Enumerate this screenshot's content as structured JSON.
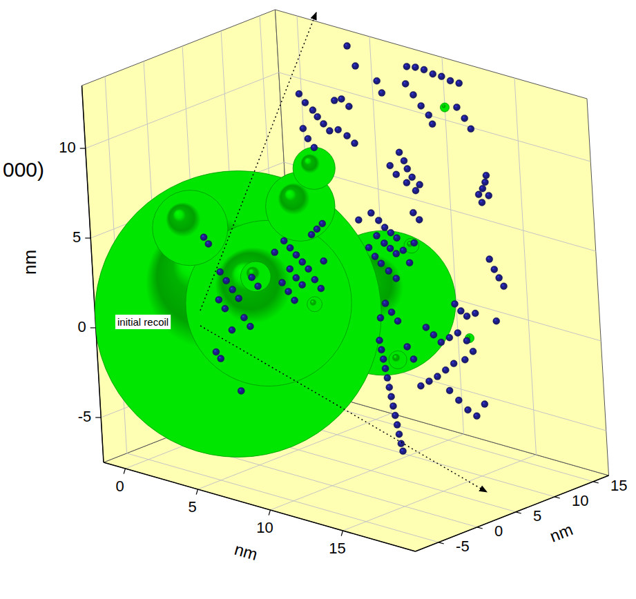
{
  "chart_data": {
    "type": "scatter3d",
    "title": "000)",
    "x_label": "nm",
    "y_label": "nm",
    "z_label": "nm",
    "annotation": "initial recoil",
    "xlim": [
      -1.5,
      20
    ],
    "ylim": [
      -8,
      17
    ],
    "zlim": [
      -7.5,
      13.5
    ],
    "xticks": [
      0,
      5,
      10,
      15
    ],
    "yticks": [
      -5,
      0,
      5,
      10,
      15
    ],
    "zticks": [
      -5,
      0,
      5,
      10
    ],
    "grid": true,
    "series": [
      {
        "type": "sphere",
        "color": "#00e600",
        "x": [
          11.0,
          5.2,
          8.5,
          3.3,
          10.0,
          8.9,
          7.7,
          9.5,
          13.2,
          14.0,
          16.9,
          11.1
        ],
        "y": [
          6,
          -2,
          -4,
          -4,
          -2,
          2,
          -4,
          0,
          6,
          2,
          6,
          15
        ],
        "z": [
          1.9,
          1.3,
          3.0,
          6.0,
          8.4,
          9.6,
          4.3,
          2.5,
          5.6,
          0.1,
          1.3,
          11.3
        ],
        "radius": [
          4.8,
          9.5,
          5.5,
          2.5,
          2.3,
          1.4,
          1.0,
          0.5,
          0.5,
          0.6,
          0.3,
          0.3
        ]
      },
      {
        "type": "scatter",
        "color": "#1c1c7c",
        "x": [
          8.6,
          9.2,
          9.8,
          10.4,
          11.0,
          11.6,
          12.2,
          9.0,
          9.5,
          10.0,
          10.5,
          11.0,
          12.5,
          13.0,
          13.4,
          4.5,
          5.0,
          7.0,
          7.3,
          3.0,
          3.5,
          3.8,
          4.2,
          4.6,
          5.2,
          5.8,
          6.3,
          3.3,
          3.6,
          4.0,
          2.6,
          4.5,
          5.0,
          5.5,
          10.5,
          10.8,
          11.0,
          11.3,
          10.9,
          11.5,
          11.8,
          10.2,
          9.8,
          16.5,
          16.4,
          16.2,
          15.9,
          16.1,
          16.6,
          10.5,
          11.0,
          11.4,
          11.8,
          12.2,
          10.8,
          11.3,
          11.7,
          12.1,
          12.6,
          10.2,
          10.6,
          11.0,
          11.5,
          12.0,
          13.0,
          13.4,
          9.6,
          12.9,
          13.3,
          6.5,
          6.9,
          7.3,
          7.7,
          8.1,
          6.8,
          7.2,
          7.6,
          8.5,
          8.9,
          6.2,
          6.6,
          7.0,
          9.2,
          5.8,
          7.9,
          8.3,
          8.7,
          2.0,
          2.3,
          3.0,
          3.4,
          3.8,
          4.2,
          2.8,
          3.2,
          4.5,
          4.9,
          3.6,
          2.4,
          2.7,
          4.0,
          5.2,
          5.6,
          15.0,
          15.5,
          16.0,
          16.6,
          17.2,
          17.8,
          18.2,
          17.6,
          16.8,
          16.2,
          15.6,
          15.0,
          14.4,
          16.4,
          17.0,
          17.6,
          18.2,
          18.8,
          14.0,
          13.6,
          13.9,
          14.0,
          14.1,
          14.2,
          14.3,
          14.4,
          14.5,
          14.6,
          14.7,
          14.8,
          14.9,
          15.0,
          15.1,
          12.8,
          13.2,
          13.6,
          12.4,
          17.5,
          17.8,
          18.1,
          18.4,
          16.0,
          16.4,
          16.8,
          17.4,
          19.4
        ],
        "y": [
          15,
          15,
          15,
          15,
          15,
          15,
          15,
          14,
          14,
          14,
          14,
          13.5,
          14,
          14,
          14,
          15,
          15,
          14,
          14,
          12,
          12,
          12,
          12,
          12,
          12,
          12,
          12,
          11,
          11,
          11,
          12,
          13,
          13,
          13,
          10,
          10,
          10,
          10,
          10,
          10,
          10,
          10,
          10,
          10,
          10,
          10,
          10,
          10,
          10,
          6,
          6,
          6,
          6,
          6,
          6,
          6,
          6,
          6,
          6,
          6,
          6,
          6,
          6,
          6,
          6,
          6,
          6,
          7,
          7,
          2,
          2,
          2,
          2,
          2,
          2,
          2,
          2,
          2,
          2,
          2,
          2,
          2,
          2,
          2,
          3,
          3,
          3,
          0,
          0,
          0,
          0,
          0,
          0,
          0,
          0,
          0,
          0,
          0,
          0,
          0,
          0,
          0,
          0,
          4,
          4,
          4,
          4,
          4,
          4,
          4,
          4,
          4,
          4,
          4,
          4,
          4,
          4,
          4,
          4,
          4,
          4,
          4,
          4,
          0,
          0,
          0,
          0,
          0,
          0,
          0,
          0,
          0,
          0,
          0,
          0,
          0,
          3,
          3,
          3,
          3,
          8,
          8,
          8,
          8,
          6,
          6,
          6,
          6,
          5
        ],
        "z": [
          13.0,
          13.1,
          13.1,
          13.0,
          13.0,
          12.9,
          12.9,
          12.3,
          11.8,
          11.3,
          10.9,
          10.6,
          11.8,
          11.3,
          10.8,
          13.2,
          12.2,
          12.0,
          11.4,
          10.2,
          9.9,
          9.6,
          9.3,
          9.0,
          9.2,
          9.0,
          8.7,
          9.0,
          8.5,
          8.1,
          10.6,
          10.5,
          10.7,
          10.4,
          9.5,
          9.1,
          8.7,
          8.3,
          7.9,
          7.6,
          8.0,
          8.2,
          8.6,
          9.6,
          9.2,
          8.8,
          8.4,
          8.0,
          8.5,
          6.8,
          6.5,
          6.2,
          6.0,
          5.8,
          5.6,
          5.3,
          5.1,
          4.9,
          5.2,
          4.8,
          4.4,
          4.1,
          3.8,
          3.5,
          4.6,
          5.8,
          6.2,
          7.2,
          6.9,
          5.0,
          4.7,
          4.4,
          4.1,
          3.8,
          3.5,
          3.1,
          2.8,
          3.3,
          2.9,
          2.6,
          2.2,
          1.8,
          4.5,
          4.2,
          5.5,
          5.9,
          6.3,
          4.5,
          4.2,
          2.8,
          2.4,
          2.0,
          1.6,
          1.2,
          0.8,
          0.6,
          0.2,
          -0.3,
          -1.8,
          -2.1,
          -3.6,
          3.0,
          2.6,
          1.8,
          1.5,
          1.2,
          1.6,
          2.0,
          1.7,
          1.2,
          0.6,
          0.2,
          -0.3,
          -0.8,
          -1.2,
          -1.6,
          -1.4,
          -1.8,
          -2.2,
          -2.4,
          -1.6,
          -0.2,
          0.4,
          1.5,
          1.0,
          0.5,
          0.0,
          -0.5,
          -1.0,
          -1.5,
          -2.0,
          -2.5,
          -3.0,
          -3.5,
          -4.0,
          -4.4,
          2.8,
          2.4,
          2.0,
          1.9,
          5.5,
          5.0,
          4.6,
          4.2,
          3.0,
          2.7,
          2.5,
          2.8,
          3.0
        ]
      }
    ]
  }
}
